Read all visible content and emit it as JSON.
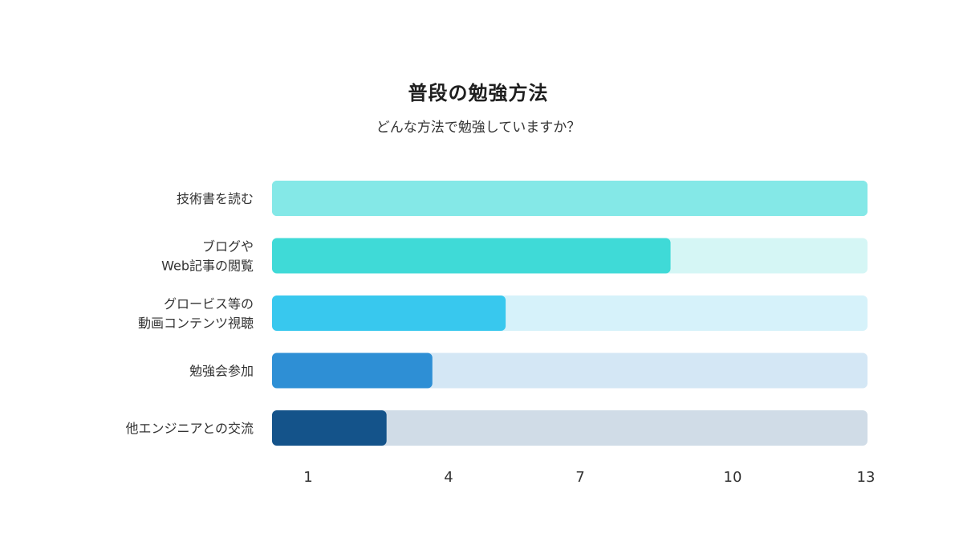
{
  "chart_data": {
    "type": "bar",
    "orientation": "horizontal",
    "title": "普段の勉強方法",
    "subtitle": "どんな方法で勉強していますか？",
    "categories": [
      [
        "技術書を読む"
      ],
      [
        "ブログや",
        "Web記事の閲覧"
      ],
      [
        "グロービス等の",
        "動画コンテンツ視聴"
      ],
      [
        "勉強会参加"
      ],
      [
        "他エンジニアとの交流"
      ]
    ],
    "values": [
      13,
      8.7,
      5.1,
      3.5,
      2.5
    ],
    "max": 13,
    "xticks": [
      "1",
      "4",
      "7",
      "10",
      "13"
    ],
    "bar_colors": [
      "#84e8e7",
      "#3fdad7",
      "#38c8ee",
      "#2e8fd5",
      "#14538a"
    ],
    "track_colors": [
      "#84e8e7",
      "#d5f6f5",
      "#d6f2fa",
      "#d4e7f5",
      "#d0dce7"
    ],
    "grid": false,
    "legend": "none"
  }
}
